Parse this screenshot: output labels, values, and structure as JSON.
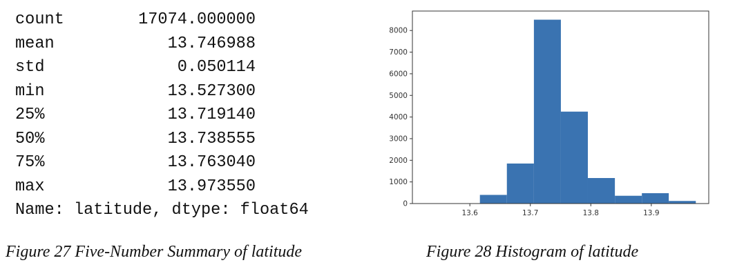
{
  "summary_table": {
    "rows": [
      {
        "label": "count",
        "value": "17074.000000"
      },
      {
        "label": "mean",
        "value": "13.746988"
      },
      {
        "label": "std",
        "value": "0.050114"
      },
      {
        "label": "min",
        "value": "13.527300"
      },
      {
        "label": "25%",
        "value": "13.719140"
      },
      {
        "label": "50%",
        "value": "13.738555"
      },
      {
        "label": "75%",
        "value": "13.763040"
      },
      {
        "label": "max",
        "value": "13.973550"
      }
    ],
    "footer": "Name: latitude, dtype: float64"
  },
  "captions": {
    "fig27": "Figure 27 Five-Number Summary of latitude",
    "fig28": "Figure 28 Histogram of latitude"
  },
  "chart_data": {
    "type": "bar",
    "title": "",
    "xlabel": "",
    "ylabel": "",
    "bar_color": "#3a73b1",
    "grid": false,
    "xlim": [
      13.505,
      13.995
    ],
    "ylim": [
      0,
      8900
    ],
    "x_ticks": [
      "13.6",
      "13.7",
      "13.8",
      "13.9"
    ],
    "y_ticks": [
      "0",
      "1000",
      "2000",
      "3000",
      "4000",
      "5000",
      "6000",
      "7000",
      "8000"
    ],
    "bins": [
      {
        "x0": 13.5273,
        "x1": 13.5719,
        "count": 2
      },
      {
        "x0": 13.5719,
        "x1": 13.6166,
        "count": 10
      },
      {
        "x0": 13.6166,
        "x1": 13.6612,
        "count": 400
      },
      {
        "x0": 13.6612,
        "x1": 13.7059,
        "count": 1850
      },
      {
        "x0": 13.7059,
        "x1": 13.7505,
        "count": 8500
      },
      {
        "x0": 13.7505,
        "x1": 13.7951,
        "count": 4250
      },
      {
        "x0": 13.7951,
        "x1": 13.8398,
        "count": 1180
      },
      {
        "x0": 13.8398,
        "x1": 13.8844,
        "count": 360
      },
      {
        "x0": 13.8844,
        "x1": 13.9289,
        "count": 480
      },
      {
        "x0": 13.9289,
        "x1": 13.9736,
        "count": 120
      }
    ]
  }
}
